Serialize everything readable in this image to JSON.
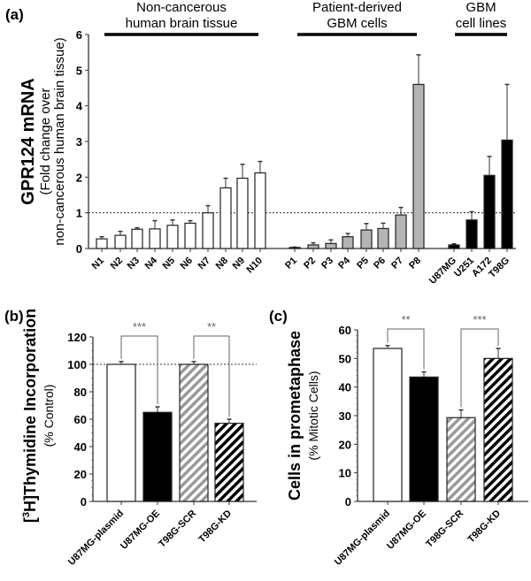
{
  "chart_data": [
    {
      "id": "a",
      "panel_label": "(a)",
      "type": "bar",
      "ylabel": "GPR124 mRNA",
      "ylabel_sub": "(Fold change over",
      "ylabel_sub2": "non-cancerous human brain tissue)",
      "ylim": [
        0,
        6
      ],
      "yticks": [
        0,
        1,
        2,
        3,
        4,
        5,
        6
      ],
      "reference_line": 1,
      "groups": [
        {
          "label_line1": "Non-cancerous",
          "label_line2": "human brain tissue",
          "fill": "#ffffff",
          "categories": [
            "N1",
            "N2",
            "N3",
            "N4",
            "N5",
            "N6",
            "N7",
            "N8",
            "N9",
            "N10"
          ],
          "values": [
            0.27,
            0.37,
            0.54,
            0.55,
            0.65,
            0.71,
            1.0,
            1.7,
            1.97,
            2.12
          ],
          "error_upper": [
            0.33,
            0.48,
            0.58,
            0.78,
            0.8,
            0.78,
            1.2,
            1.97,
            2.36,
            2.44
          ]
        },
        {
          "label_line1": "Patient-derived",
          "label_line2": "GBM cells",
          "fill": "#b4b4b4",
          "categories": [
            "P1",
            "P2",
            "P3",
            "P4",
            "P5",
            "P6",
            "P7",
            "P8"
          ],
          "values": [
            0.03,
            0.1,
            0.14,
            0.33,
            0.52,
            0.56,
            0.94,
            4.6
          ],
          "error_upper": [
            0.04,
            0.16,
            0.24,
            0.42,
            0.7,
            0.71,
            1.15,
            5.43
          ]
        },
        {
          "label_line1": "GBM",
          "label_line2": "cell lines",
          "fill": "#000000",
          "categories": [
            "U87MG",
            "U251",
            "A172",
            "T98G"
          ],
          "values": [
            0.1,
            0.8,
            2.05,
            3.04
          ],
          "error_upper": [
            0.13,
            1.03,
            2.58,
            4.6
          ]
        }
      ]
    },
    {
      "id": "b",
      "panel_label": "(b)",
      "type": "bar",
      "ylabel_pre": "[",
      "ylabel_sup": "3",
      "ylabel_main": "H]Thymidine Incorporation",
      "ylabel_sub": "(% Control)",
      "ylim": [
        0,
        120
      ],
      "yticks": [
        0,
        20,
        40,
        60,
        80,
        100,
        120
      ],
      "reference_line": 100,
      "categories": [
        "U87MG-plasmid",
        "U87MG-OE",
        "T98G-SCR",
        "T98G-KD"
      ],
      "values": [
        100,
        65,
        100,
        57
      ],
      "error_upper": [
        102,
        69,
        102,
        60
      ],
      "fills": [
        "white",
        "black",
        "gray-hatch",
        "black-hatch"
      ],
      "significance": [
        {
          "pair": [
            0,
            1
          ],
          "label": "***"
        },
        {
          "pair": [
            2,
            3
          ],
          "label": "**"
        }
      ]
    },
    {
      "id": "c",
      "panel_label": "(c)",
      "type": "bar",
      "ylabel_main": "Cells in prometaphase",
      "ylabel_sub": "(% Mitotic Cells)",
      "ylim": [
        0,
        60
      ],
      "yticks": [
        0,
        10,
        20,
        30,
        40,
        50,
        60
      ],
      "categories": [
        "U87MG-plasmid",
        "U87MG-OE",
        "T98G-SCR",
        "T98G-KD"
      ],
      "values": [
        53.5,
        43.5,
        29.3,
        50
      ],
      "error_upper": [
        54.5,
        45.3,
        32,
        53.5
      ],
      "fills": [
        "white",
        "black",
        "gray-hatch",
        "black-hatch"
      ],
      "significance": [
        {
          "pair": [
            0,
            1
          ],
          "label": "**"
        },
        {
          "pair": [
            2,
            3
          ],
          "label": "***"
        }
      ]
    }
  ]
}
